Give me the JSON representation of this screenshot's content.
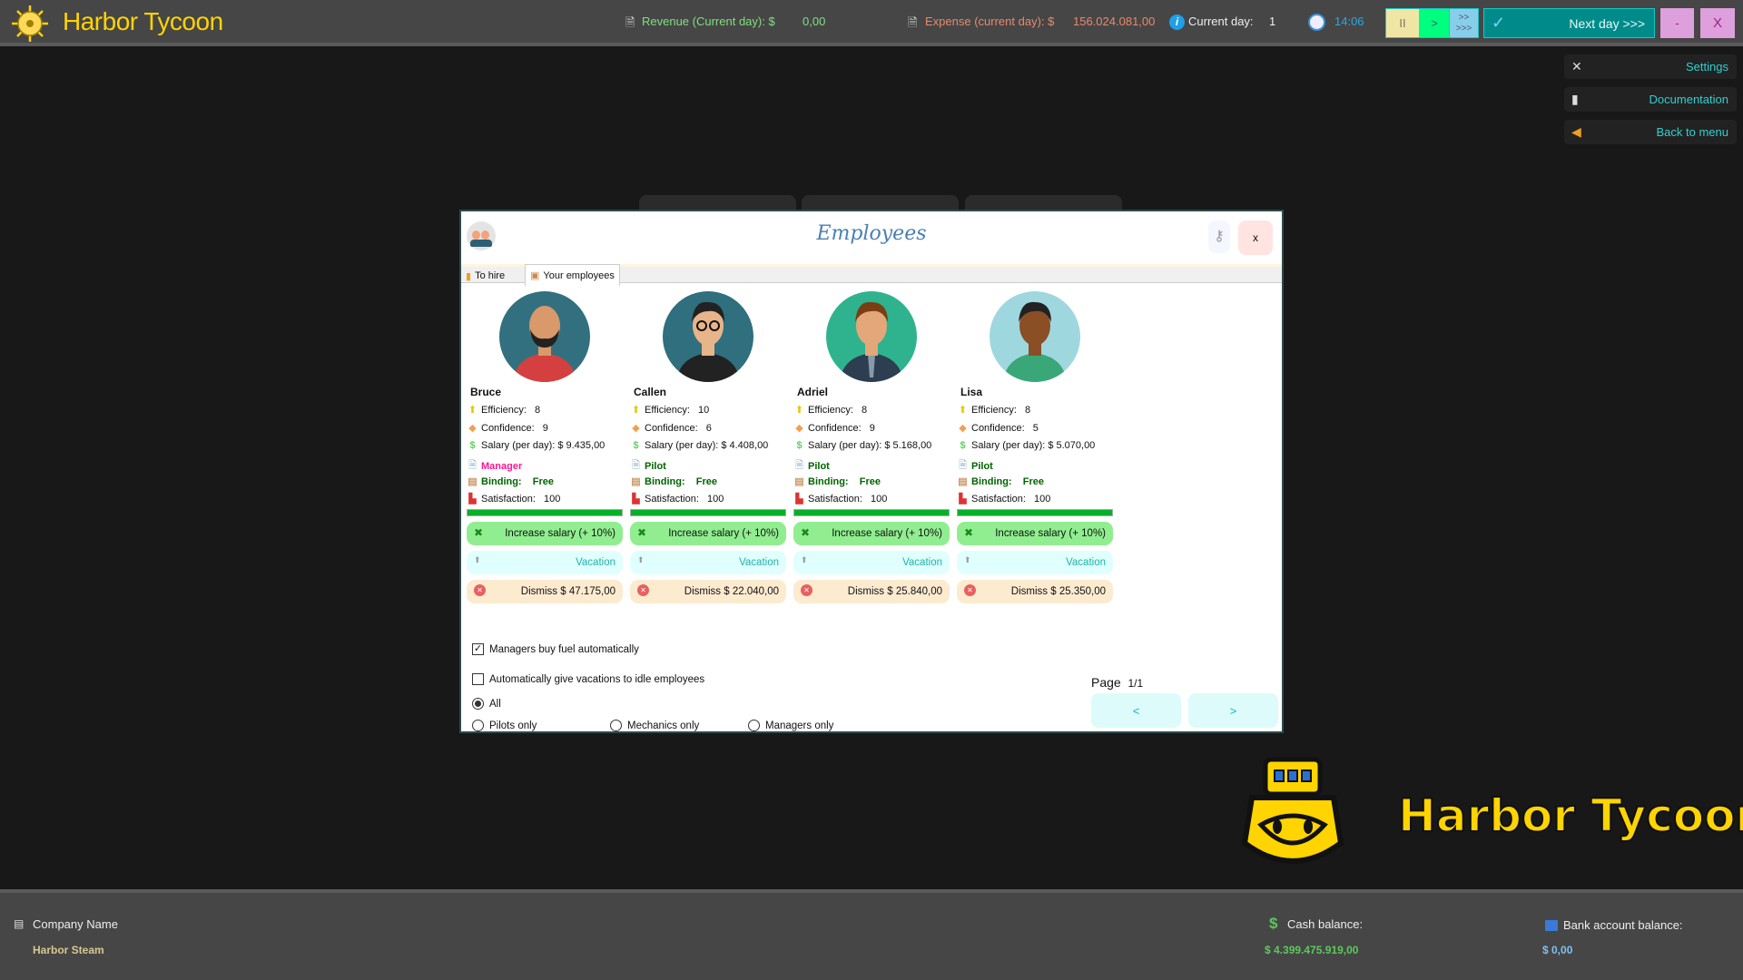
{
  "header": {
    "app_title": "Harbor Tycoon",
    "revenue_label": "Revenue (Current day): $",
    "revenue_value": "0,00",
    "expense_label": "Expense (current day): $",
    "expense_value": "156.024.081,00",
    "day_label": "Current day:",
    "day_value": "1",
    "time": "14:06",
    "controls": {
      "pause": "II",
      "play": ">",
      "fast_top": ">>",
      "fast_bottom": ">>>",
      "next_day": "Next day >>>",
      "minimize": "-",
      "close": "X"
    }
  },
  "side_menu": [
    {
      "label": "Settings",
      "icon": "tools-icon"
    },
    {
      "label": "Documentation",
      "icon": "document-icon"
    },
    {
      "label": "Back to menu",
      "icon": "arrow-left-icon"
    }
  ],
  "dialog": {
    "title": "Employees",
    "close": "x",
    "tabs": [
      {
        "label": "To hire"
      },
      {
        "label": "Your employees",
        "active": true
      }
    ],
    "labels": {
      "efficiency": "Efficiency:",
      "confidence": "Confidence:",
      "salary": "Salary (per day):",
      "binding": "Binding:",
      "satisfaction": "Satisfaction:"
    },
    "employees": [
      {
        "name": "Bruce",
        "efficiency": "8",
        "confidence": "9",
        "salary": "$ 9.435,00",
        "role": "Manager",
        "binding": "Free",
        "satisfaction": "100",
        "satisfaction_pct": 100,
        "increase": "Increase salary (+ 10%)",
        "vacation": "Vacation",
        "dismiss": "Dismiss $ 47.175,00"
      },
      {
        "name": "Callen",
        "efficiency": "10",
        "confidence": "6",
        "salary": "$ 4.408,00",
        "role": "Pilot",
        "binding": "Free",
        "satisfaction": "100",
        "satisfaction_pct": 100,
        "increase": "Increase salary (+ 10%)",
        "vacation": "Vacation",
        "dismiss": "Dismiss $ 22.040,00"
      },
      {
        "name": "Adriel",
        "efficiency": "8",
        "confidence": "9",
        "salary": "$ 5.168,00",
        "role": "Pilot",
        "binding": "Free",
        "satisfaction": "100",
        "satisfaction_pct": 100,
        "increase": "Increase salary (+ 10%)",
        "vacation": "Vacation",
        "dismiss": "Dismiss $ 25.840,00"
      },
      {
        "name": "Lisa",
        "efficiency": "8",
        "confidence": "5",
        "salary": "$ 5.070,00",
        "role": "Pilot",
        "binding": "Free",
        "satisfaction": "100",
        "satisfaction_pct": 100,
        "increase": "Increase salary (+ 10%)",
        "vacation": "Vacation",
        "dismiss": "Dismiss $ 25.350,00"
      }
    ],
    "options": {
      "managers_fuel": {
        "label": "Managers buy fuel automatically",
        "checked": true
      },
      "auto_vacation": {
        "label": "Automatically give vacations to idle employees",
        "checked": false
      }
    },
    "filters": [
      {
        "label": "All",
        "selected": true
      },
      {
        "label": "Pilots only"
      },
      {
        "label": "Mechanics only"
      },
      {
        "label": "Managers only"
      }
    ],
    "pagination": {
      "label": "Page",
      "value": "1/1",
      "prev": "<",
      "next": ">"
    }
  },
  "brand": {
    "logo_text": "Harbor Tycoon"
  },
  "footer": {
    "company_label": "Company Name",
    "company_value": "Harbor Steam",
    "cash_label": "Cash balance:",
    "cash_value": "$ 4.399.475.919,00",
    "bank_label": "Bank account balance:",
    "bank_value": "$ 0,00"
  },
  "colors": {
    "brand_yellow": "#ffd400",
    "revenue": "#7ee07e",
    "expense": "#e8896a",
    "accent_teal": "#008b8b",
    "manager": "#ff1493",
    "binding": "#006400"
  }
}
